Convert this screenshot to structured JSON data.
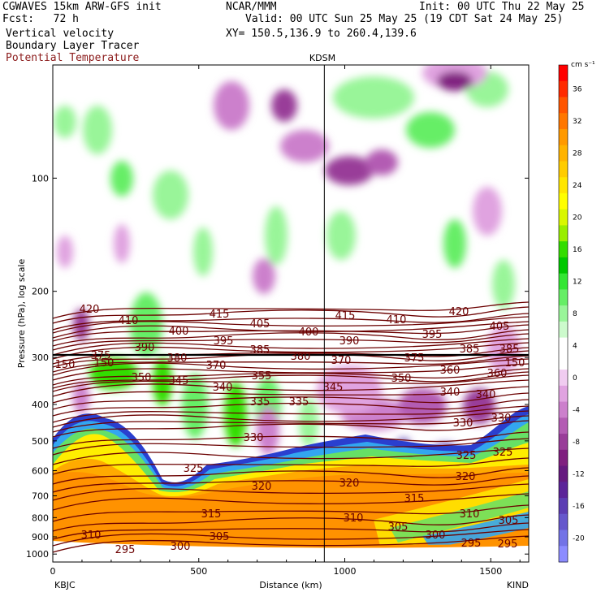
{
  "header": {
    "line1_left": "CGWAVES 15km ARW-GFS init",
    "line1_mid": "NCAR/MMM",
    "line1_right": "Init: 00 UTC Thu 22 May 25",
    "line2_left": "Fcst:   72 h",
    "line2_right": "Valid: 00 UTC Sun 25 May 25 (19 CDT Sat 24 May 25)",
    "line3_left": "Vertical velocity",
    "line3_right": "XY= 150.5,136.9 to 260.4,139.6",
    "line4_left": "Boundary Layer Tracer",
    "line5_left": "Potential Temperature",
    "line5_color": "#8b1a1a"
  },
  "chart_data": {
    "type": "heatmap",
    "title": "",
    "top_marker": "KDSM",
    "marker_x_km": 930,
    "xlabel": "Distance (km)",
    "ylabel": "Pressure (hPa), log scale",
    "x_ticks": [
      0,
      500,
      1000,
      1500
    ],
    "x_range_km": [
      0,
      1630
    ],
    "y_ticks": [
      100,
      200,
      300,
      400,
      500,
      600,
      700,
      800,
      900,
      1000
    ],
    "y_range_hpa": [
      50,
      1050
    ],
    "y_scale": "log",
    "left_station": "KBJC",
    "right_station": "KIND",
    "colorbar": {
      "unit": "cm s⁻¹",
      "labels": [
        "36",
        "32",
        "28",
        "24",
        "20",
        "16",
        "12",
        "8",
        "4",
        "0",
        "-4",
        "-8",
        "-12",
        "-16",
        "-20"
      ],
      "colors": [
        "#ff0000",
        "#ff2a00",
        "#ff5500",
        "#ff7700",
        "#ff9900",
        "#ffb300",
        "#ffcc00",
        "#ffe600",
        "#ffff00",
        "#d9f700",
        "#99ee00",
        "#33dd00",
        "#00c800",
        "#33e633",
        "#66ee66",
        "#99f599",
        "#ccfacc",
        "#ffffff",
        "#ffffff",
        "#f0ccf0",
        "#e0a3e0",
        "#cc80cc",
        "#b35cb3",
        "#993d99",
        "#802080",
        "#661a80",
        "#5c2499",
        "#5c3db3",
        "#6658cc",
        "#7373e6",
        "#8c8cff"
      ]
    },
    "theta_contours_K": [
      295,
      300,
      305,
      310,
      315,
      320,
      325,
      330,
      335,
      340,
      345,
      350,
      355,
      360,
      370,
      375,
      380,
      385,
      390,
      395,
      400,
      405,
      410,
      415,
      420
    ],
    "theta_labels": [
      {
        "v": "420",
        "x": 110,
        "y": 380
      },
      {
        "v": "410",
        "x": 158,
        "y": 394
      },
      {
        "v": "415",
        "x": 270,
        "y": 386
      },
      {
        "v": "405",
        "x": 320,
        "y": 398
      },
      {
        "v": "400",
        "x": 220,
        "y": 407
      },
      {
        "v": "395",
        "x": 275,
        "y": 419
      },
      {
        "v": "390",
        "x": 178,
        "y": 427
      },
      {
        "v": "380",
        "x": 218,
        "y": 440
      },
      {
        "v": "375",
        "x": 124,
        "y": 437
      },
      {
        "v": "370",
        "x": 266,
        "y": 449
      },
      {
        "v": "385",
        "x": 320,
        "y": 430
      },
      {
        "v": "380",
        "x": 370,
        "y": 438
      },
      {
        "v": "350",
        "x": 174,
        "y": 464
      },
      {
        "v": "345",
        "x": 220,
        "y": 468
      },
      {
        "v": "340",
        "x": 274,
        "y": 476
      },
      {
        "v": "355",
        "x": 322,
        "y": 462
      },
      {
        "v": "345",
        "x": 410,
        "y": 476
      },
      {
        "v": "335",
        "x": 320,
        "y": 494
      },
      {
        "v": "335",
        "x": 368,
        "y": 494
      },
      {
        "v": "330",
        "x": 312,
        "y": 538
      },
      {
        "v": "325",
        "x": 238,
        "y": 576
      },
      {
        "v": "320",
        "x": 322,
        "y": 598
      },
      {
        "v": "320",
        "x": 430,
        "y": 594
      },
      {
        "v": "315",
        "x": 260,
        "y": 632
      },
      {
        "v": "310",
        "x": 112,
        "y": 658
      },
      {
        "v": "305",
        "x": 270,
        "y": 660
      },
      {
        "v": "300",
        "x": 222,
        "y": 672
      },
      {
        "v": "295",
        "x": 154,
        "y": 676
      },
      {
        "v": "400",
        "x": 380,
        "y": 408
      },
      {
        "v": "415",
        "x": 425,
        "y": 388
      },
      {
        "v": "410",
        "x": 488,
        "y": 393
      },
      {
        "v": "420",
        "x": 565,
        "y": 383
      },
      {
        "v": "405",
        "x": 615,
        "y": 401
      },
      {
        "v": "395",
        "x": 532,
        "y": 411
      },
      {
        "v": "390",
        "x": 430,
        "y": 419
      },
      {
        "v": "375",
        "x": 510,
        "y": 440
      },
      {
        "v": "385",
        "x": 578,
        "y": 429
      },
      {
        "v": "385",
        "x": 627,
        "y": 429
      },
      {
        "v": "370",
        "x": 420,
        "y": 443
      },
      {
        "v": "360",
        "x": 554,
        "y": 455
      },
      {
        "v": "360",
        "x": 612,
        "y": 459
      },
      {
        "v": "350",
        "x": 494,
        "y": 465
      },
      {
        "v": "340",
        "x": 554,
        "y": 482
      },
      {
        "v": "340",
        "x": 598,
        "y": 485
      },
      {
        "v": "330",
        "x": 570,
        "y": 520
      },
      {
        "v": "330",
        "x": 617,
        "y": 514
      },
      {
        "v": "325",
        "x": 574,
        "y": 560
      },
      {
        "v": "325",
        "x": 619,
        "y": 556
      },
      {
        "v": "320",
        "x": 573,
        "y": 586
      },
      {
        "v": "315",
        "x": 510,
        "y": 613
      },
      {
        "v": "310",
        "x": 435,
        "y": 637
      },
      {
        "v": "310",
        "x": 578,
        "y": 632
      },
      {
        "v": "305",
        "x": 490,
        "y": 648
      },
      {
        "v": "305",
        "x": 626,
        "y": 640
      },
      {
        "v": "300",
        "x": 536,
        "y": 658
      },
      {
        "v": "295",
        "x": 580,
        "y": 668
      },
      {
        "v": "295",
        "x": 625,
        "y": 669
      },
      {
        "v": "150",
        "x": 80,
        "y": 448
      },
      {
        "v": "150",
        "x": 128,
        "y": 446
      },
      {
        "v": "150",
        "x": 634,
        "y": 446
      }
    ]
  }
}
